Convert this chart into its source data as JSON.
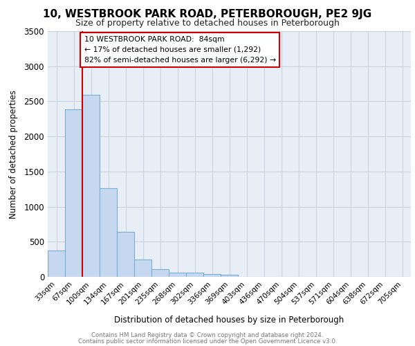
{
  "title1": "10, WESTBROOK PARK ROAD, PETERBOROUGH, PE2 9JG",
  "title2": "Size of property relative to detached houses in Peterborough",
  "xlabel": "Distribution of detached houses by size in Peterborough",
  "ylabel": "Number of detached properties",
  "categories": [
    "33sqm",
    "67sqm",
    "100sqm",
    "134sqm",
    "167sqm",
    "201sqm",
    "235sqm",
    "268sqm",
    "302sqm",
    "336sqm",
    "369sqm",
    "403sqm",
    "436sqm",
    "470sqm",
    "504sqm",
    "537sqm",
    "571sqm",
    "604sqm",
    "638sqm",
    "672sqm",
    "705sqm"
  ],
  "bar_values": [
    375,
    2390,
    2590,
    1260,
    640,
    245,
    105,
    60,
    55,
    40,
    30,
    0,
    0,
    0,
    0,
    0,
    0,
    0,
    0,
    0,
    0
  ],
  "bar_color": "#c5d8f0",
  "bar_edge_color": "#7aafd4",
  "grid_color": "#c8d4e0",
  "annotation_box_text_line1": "10 WESTBROOK PARK ROAD:  84sqm",
  "annotation_box_text_line2": "← 17% of detached houses are smaller (1,292)",
  "annotation_box_text_line3": "82% of semi-detached houses are larger (6,292) →",
  "annotation_box_color": "#ffffff",
  "annotation_box_edge_color": "#cc0000",
  "vline_color": "#cc0000",
  "ylim": [
    0,
    3500
  ],
  "yticks": [
    0,
    500,
    1000,
    1500,
    2000,
    2500,
    3000,
    3500
  ],
  "background_color": "#e8eef5",
  "footer_text1": "Contains HM Land Registry data © Crown copyright and database right 2024.",
  "footer_text2": "Contains public sector information licensed under the Open Government Licence v3.0."
}
